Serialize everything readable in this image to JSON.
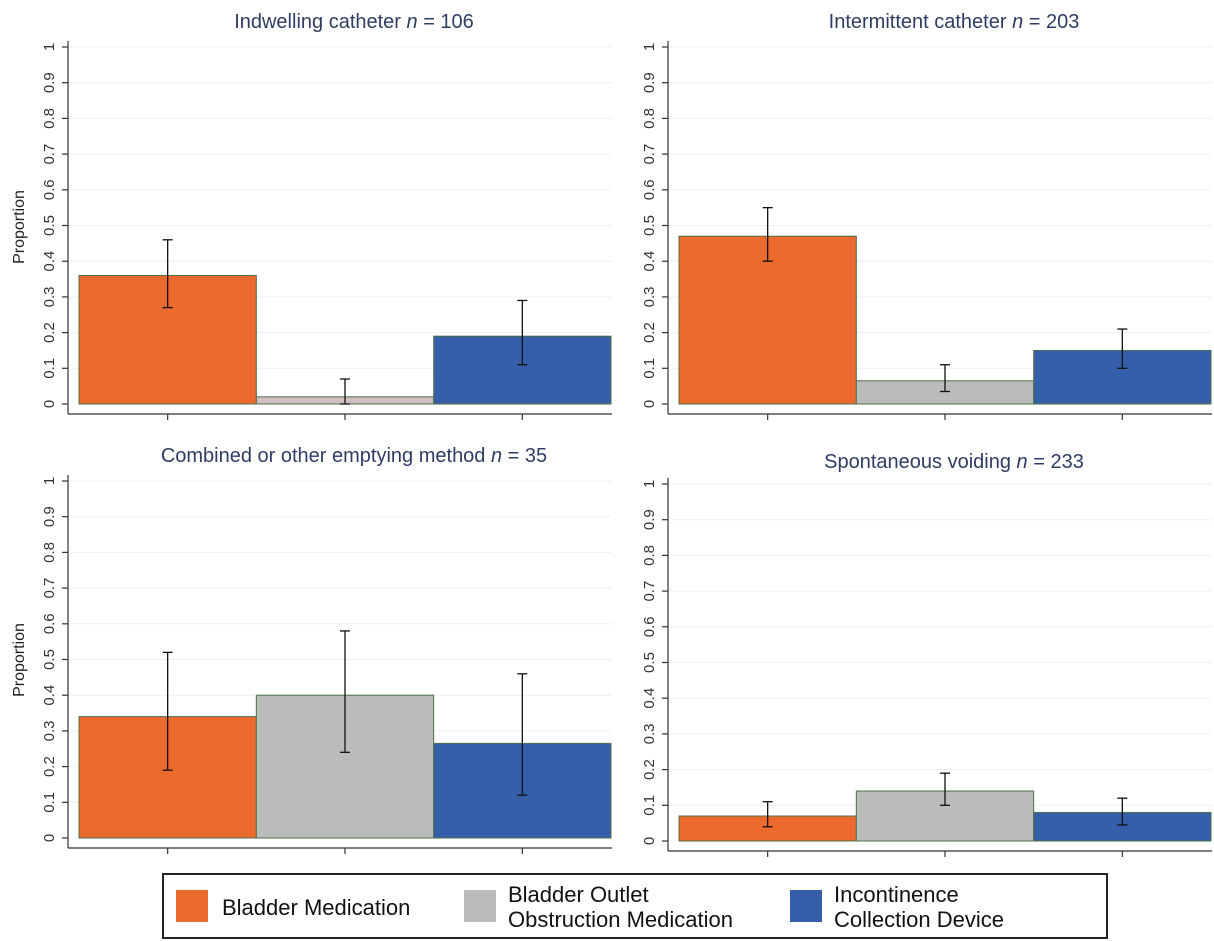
{
  "chart_data": [
    {
      "type": "bar",
      "title_prefix": "Indwelling catheter ",
      "title_n": "n",
      "title_suffix": " = 106",
      "ylabel": "Proportion",
      "ylim": [
        0,
        1
      ],
      "yticks": [
        "0",
        "0.1",
        "0.2",
        "0.3",
        "0.4",
        "0.5",
        "0.6",
        "0.7",
        "0.8",
        "0.9",
        "1"
      ],
      "categories": [
        "Bladder Medication",
        "Bladder Outlet Obstruction Medication",
        "Incontinence Collection Device"
      ],
      "values": [
        0.36,
        0.02,
        0.19
      ],
      "ci_low": [
        0.27,
        0.0,
        0.11
      ],
      "ci_high": [
        0.46,
        0.07,
        0.29
      ],
      "bar_colors": [
        "#eb6a2e",
        "#d2bfc2",
        "#355fa9"
      ]
    },
    {
      "type": "bar",
      "title_prefix": "Intermittent catheter ",
      "title_n": "n",
      "title_suffix": " = 203",
      "ylabel": "",
      "ylim": [
        0,
        1
      ],
      "yticks": [
        "0",
        "0.1",
        "0.2",
        "0.3",
        "0.4",
        "0.5",
        "0.6",
        "0.7",
        "0.8",
        "0.9",
        "1"
      ],
      "categories": [
        "Bladder Medication",
        "Bladder Outlet Obstruction Medication",
        "Incontinence Collection Device"
      ],
      "values": [
        0.47,
        0.065,
        0.15
      ],
      "ci_low": [
        0.4,
        0.035,
        0.1
      ],
      "ci_high": [
        0.55,
        0.11,
        0.21
      ],
      "bar_colors": [
        "#eb6a2e",
        "#b9bcbb",
        "#355fa9"
      ]
    },
    {
      "type": "bar",
      "title_prefix": "Combined or other emptying method ",
      "title_n": "n",
      "title_suffix": " = 35",
      "ylabel": "Proportion",
      "ylim": [
        0,
        1
      ],
      "yticks": [
        "0",
        "0.1",
        "0.2",
        "0.3",
        "0.4",
        "0.5",
        "0.6",
        "0.7",
        "0.8",
        "0.9",
        "1"
      ],
      "categories": [
        "Bladder Medication",
        "Bladder Outlet Obstruction Medication",
        "Incontinence Collection Device"
      ],
      "values": [
        0.34,
        0.4,
        0.265
      ],
      "ci_low": [
        0.19,
        0.24,
        0.12
      ],
      "ci_high": [
        0.52,
        0.58,
        0.46
      ],
      "bar_colors": [
        "#eb6a2e",
        "#b9bcbb",
        "#355fa9"
      ]
    },
    {
      "type": "bar",
      "title_prefix": "Spontaneous voiding ",
      "title_n": "n",
      "title_suffix": " = 233",
      "ylabel": "",
      "ylim": [
        0,
        1
      ],
      "yticks": [
        "0",
        "0.1",
        "0.2",
        "0.3",
        "0.4",
        "0.5",
        "0.6",
        "0.7",
        "0.8",
        "0.9",
        "1"
      ],
      "categories": [
        "Bladder Medication",
        "Bladder Outlet Obstruction Medication",
        "Incontinence Collection Device"
      ],
      "values": [
        0.07,
        0.14,
        0.08
      ],
      "ci_low": [
        0.04,
        0.1,
        0.045
      ],
      "ci_high": [
        0.11,
        0.19,
        0.12
      ],
      "bar_colors": [
        "#eb6a2e",
        "#b9bcbb",
        "#355fa9"
      ]
    }
  ],
  "legend": {
    "items": [
      {
        "line1": "Bladder Medication",
        "line2": "",
        "color": "#eb6a2e"
      },
      {
        "line1": "Bladder Outlet",
        "line2": "Obstruction Medication",
        "color": "#b9bcbb"
      },
      {
        "line1": "Incontinence",
        "line2": "Collection Device",
        "color": "#355fa9"
      }
    ]
  },
  "style": {
    "bar_outline": "#4f6f49",
    "error_bar": "#111111"
  }
}
